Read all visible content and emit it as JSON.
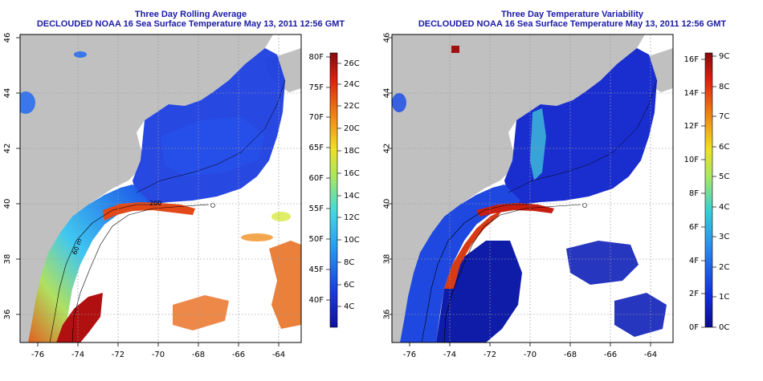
{
  "colors": {
    "land": "#c0c0c0",
    "title": "#1a1aa6",
    "frame": "#000000",
    "grid": "#9a9a9a"
  },
  "maps": [
    {
      "title": "Three Day Rolling Average",
      "subtitle": "DECLOUDED NOAA 16 Sea Surface Temperature May 13, 2011 12:56 GMT",
      "x_ticks": [
        "-76",
        "-74",
        "-72",
        "-70",
        "-68",
        "-66",
        "-64"
      ],
      "y_ticks": [
        "36",
        "38",
        "40",
        "42",
        "44",
        "46"
      ],
      "isobath_labels": [
        "60 m",
        "200"
      ],
      "colorbar": {
        "left_labels": [
          "80F",
          "75F",
          "70F",
          "65F",
          "60F",
          "55F",
          "50F",
          "45F",
          "40F"
        ],
        "right_labels": [
          "26C",
          "24C",
          "22C",
          "20C",
          "18C",
          "16C",
          "14C",
          "12C",
          "10C",
          "8C",
          "6C",
          "4C"
        ]
      }
    },
    {
      "title": "Three Day Temperature Variability",
      "subtitle": "DECLOUDED NOAA 16 Sea Surface Temperature May 13, 2011 12:56 GMT",
      "x_ticks": [
        "-76",
        "-74",
        "-72",
        "-70",
        "-68",
        "-66",
        "-64"
      ],
      "y_ticks": [
        "36",
        "38",
        "40",
        "42",
        "44",
        "46"
      ],
      "isobath_labels": [],
      "colorbar": {
        "left_labels": [
          "16F",
          "14F",
          "12F",
          "10F",
          "8F",
          "6F",
          "4F",
          "2F",
          "0F"
        ],
        "right_labels": [
          "9C",
          "8C",
          "7C",
          "6C",
          "5C",
          "4C",
          "3C",
          "2C",
          "1C",
          "0C"
        ]
      }
    }
  ]
}
